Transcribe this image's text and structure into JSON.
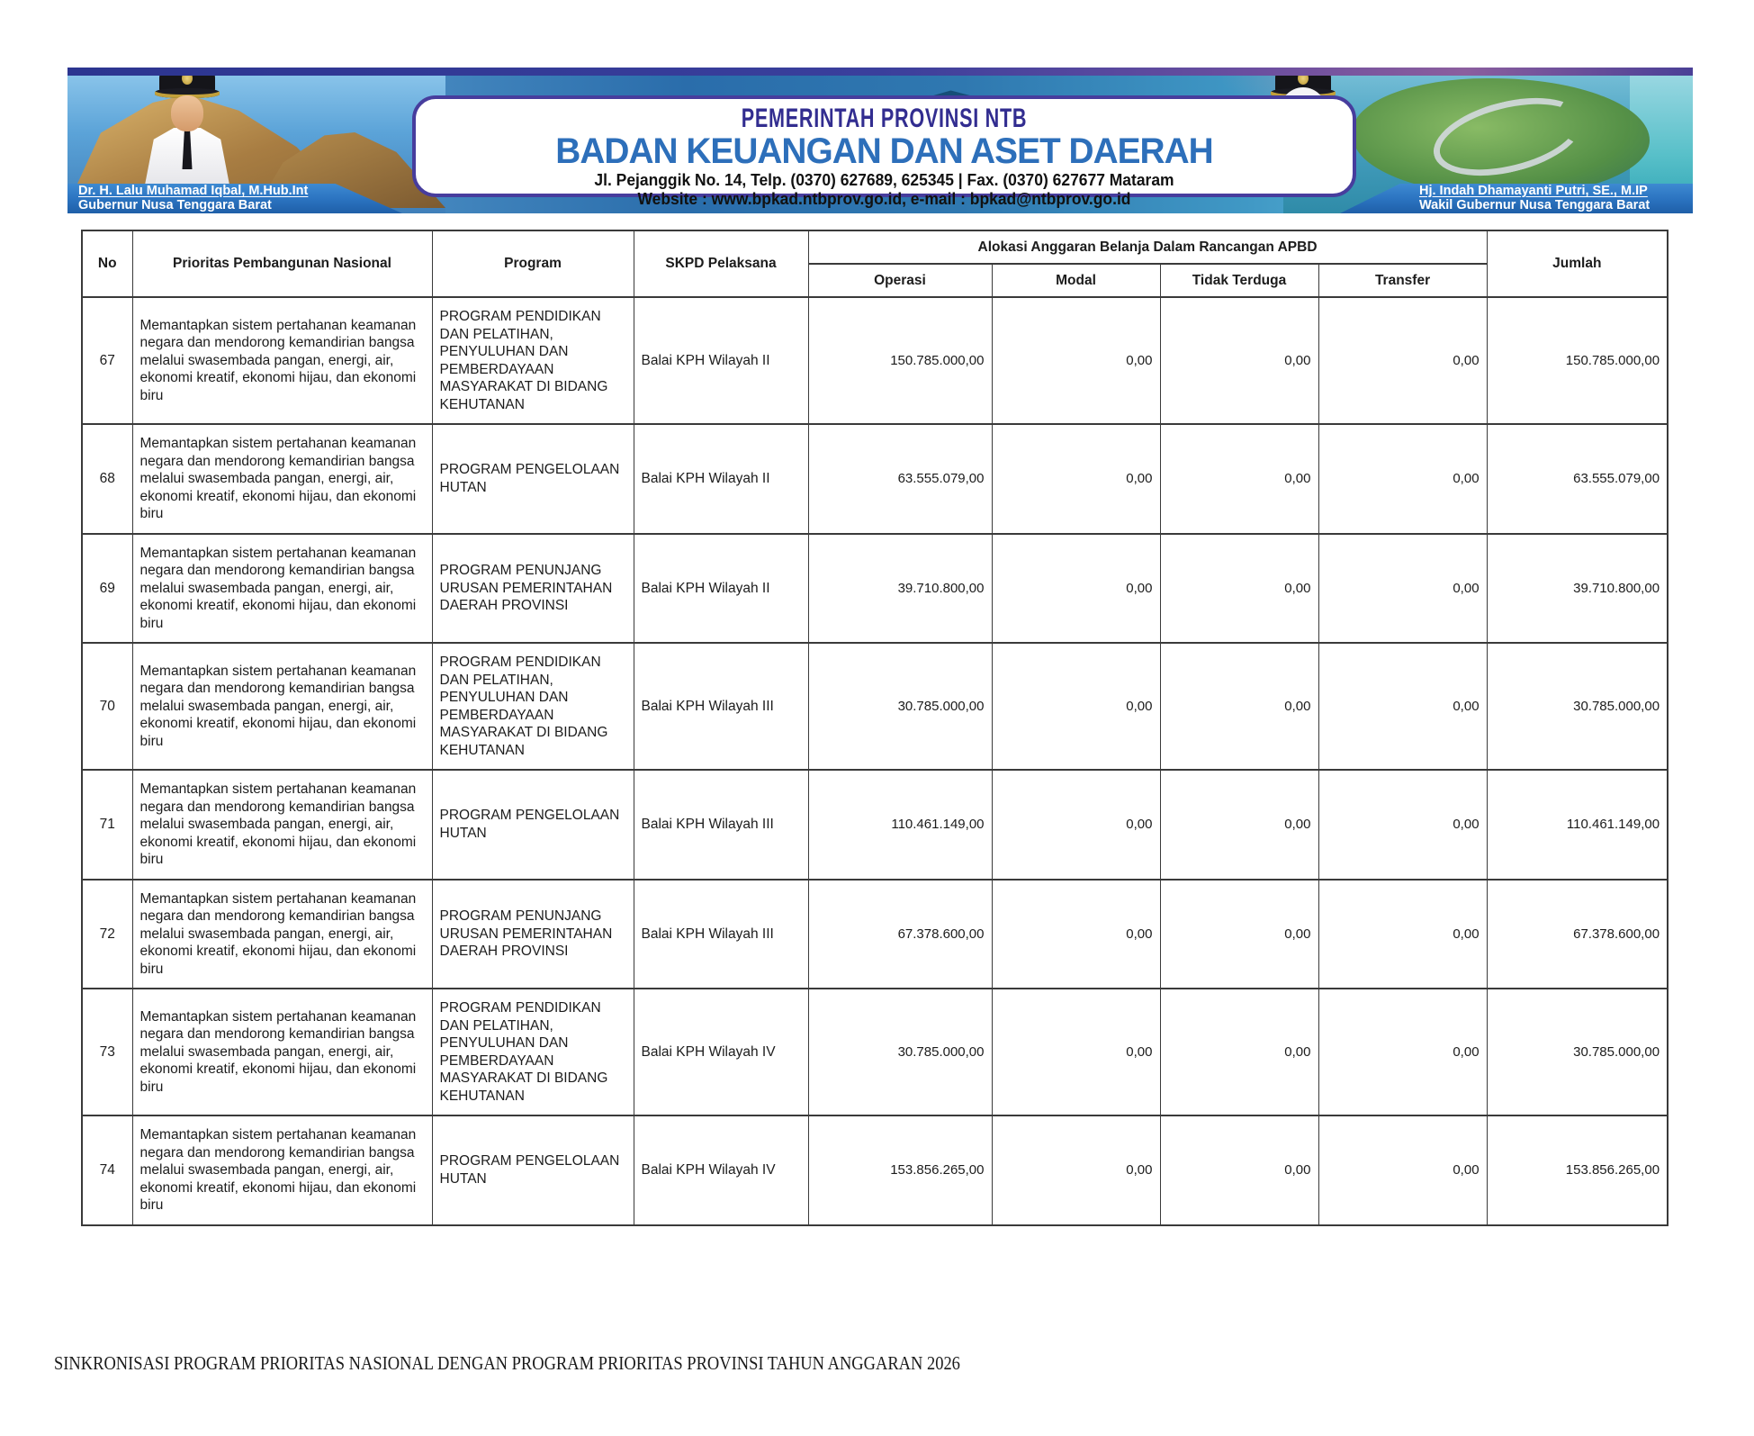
{
  "banner": {
    "agency_parent": "PEMERINTAH PROVINSI NTB",
    "agency_name": "BADAN KEUANGAN DAN ASET DAERAH",
    "address": "Jl. Pejanggik No. 14, Telp. (0370) 627689, 625345 | Fax. (0370) 627677 Mataram",
    "contact": "Website : www.bpkad.ntbprov.go.id, e-mail : bpkad@ntbprov.go.id",
    "left_official": {
      "name": "Dr. H. Lalu Muhamad Iqbal, M.Hub.Int",
      "title": "Gubernur Nusa Tenggara Barat"
    },
    "right_official": {
      "name": "Hj. Indah Dhamayanti Putri, SE., M.IP",
      "title": "Wakil Gubernur Nusa Tenggara Barat"
    }
  },
  "colors": {
    "title-indigo": "#322d90",
    "agency-blue": "#2d6fba",
    "box-border": "#473d9d",
    "ribbon-blue": "#2a72bf",
    "table-border": "#3a3a3a",
    "footer-text": "#1a1a1a"
  },
  "table": {
    "columns": {
      "no": "No",
      "priority": "Prioritas Pembangunan Nasional",
      "program": "Program",
      "skpd": "SKPD Pelaksana",
      "group": "Alokasi Anggaran Belanja Dalam Rancangan APBD",
      "operasi": "Operasi",
      "modal": "Modal",
      "tidak_terduga": "Tidak Terduga",
      "transfer": "Transfer",
      "jumlah": "Jumlah"
    },
    "rows": [
      {
        "no": "67",
        "priority": "Memantapkan sistem pertahanan keamanan negara dan mendorong kemandirian bangsa melalui swasembada pangan, energi, air, ekonomi kreatif, ekonomi hijau, dan ekonomi biru",
        "program": "PROGRAM PENDIDIKAN DAN PELATIHAN, PENYULUHAN DAN PEMBERDAYAAN MASYARAKAT DI BIDANG KEHUTANAN",
        "skpd": "Balai KPH Wilayah II",
        "operasi": "150.785.000,00",
        "modal": "0,00",
        "tidak_terduga": "0,00",
        "transfer": "0,00",
        "jumlah": "150.785.000,00"
      },
      {
        "no": "68",
        "priority": "Memantapkan sistem pertahanan keamanan negara dan mendorong kemandirian bangsa melalui swasembada pangan, energi, air, ekonomi kreatif, ekonomi hijau, dan ekonomi biru",
        "program": "PROGRAM PENGELOLAAN HUTAN",
        "skpd": "Balai KPH Wilayah II",
        "operasi": "63.555.079,00",
        "modal": "0,00",
        "tidak_terduga": "0,00",
        "transfer": "0,00",
        "jumlah": "63.555.079,00"
      },
      {
        "no": "69",
        "priority": "Memantapkan sistem pertahanan keamanan negara dan mendorong kemandirian bangsa melalui swasembada pangan, energi, air, ekonomi kreatif, ekonomi hijau, dan ekonomi biru",
        "program": "PROGRAM PENUNJANG URUSAN PEMERINTAHAN DAERAH PROVINSI",
        "skpd": "Balai KPH Wilayah II",
        "operasi": "39.710.800,00",
        "modal": "0,00",
        "tidak_terduga": "0,00",
        "transfer": "0,00",
        "jumlah": "39.710.800,00"
      },
      {
        "no": "70",
        "priority": "Memantapkan sistem pertahanan keamanan negara dan mendorong kemandirian bangsa melalui swasembada pangan, energi, air, ekonomi kreatif, ekonomi hijau, dan ekonomi biru",
        "program": "PROGRAM PENDIDIKAN DAN PELATIHAN, PENYULUHAN DAN PEMBERDAYAAN MASYARAKAT DI BIDANG KEHUTANAN",
        "skpd": "Balai KPH Wilayah III",
        "operasi": "30.785.000,00",
        "modal": "0,00",
        "tidak_terduga": "0,00",
        "transfer": "0,00",
        "jumlah": "30.785.000,00"
      },
      {
        "no": "71",
        "priority": "Memantapkan sistem pertahanan keamanan negara dan mendorong kemandirian bangsa melalui swasembada pangan, energi, air, ekonomi kreatif, ekonomi hijau, dan ekonomi biru",
        "program": "PROGRAM PENGELOLAAN HUTAN",
        "skpd": "Balai KPH Wilayah III",
        "operasi": "110.461.149,00",
        "modal": "0,00",
        "tidak_terduga": "0,00",
        "transfer": "0,00",
        "jumlah": "110.461.149,00"
      },
      {
        "no": "72",
        "priority": "Memantapkan sistem pertahanan keamanan negara dan mendorong kemandirian bangsa melalui swasembada pangan, energi, air, ekonomi kreatif, ekonomi hijau, dan ekonomi biru",
        "program": "PROGRAM PENUNJANG URUSAN PEMERINTAHAN DAERAH PROVINSI",
        "skpd": "Balai KPH Wilayah III",
        "operasi": "67.378.600,00",
        "modal": "0,00",
        "tidak_terduga": "0,00",
        "transfer": "0,00",
        "jumlah": "67.378.600,00"
      },
      {
        "no": "73",
        "priority": "Memantapkan sistem pertahanan keamanan negara dan mendorong kemandirian bangsa melalui swasembada pangan, energi, air, ekonomi kreatif, ekonomi hijau, dan ekonomi biru",
        "program": "PROGRAM PENDIDIKAN DAN PELATIHAN, PENYULUHAN DAN PEMBERDAYAAN MASYARAKAT DI BIDANG KEHUTANAN",
        "skpd": "Balai KPH Wilayah IV",
        "operasi": "30.785.000,00",
        "modal": "0,00",
        "tidak_terduga": "0,00",
        "transfer": "0,00",
        "jumlah": "30.785.000,00"
      },
      {
        "no": "74",
        "priority": "Memantapkan sistem pertahanan keamanan negara dan mendorong kemandirian bangsa melalui swasembada pangan, energi, air, ekonomi kreatif, ekonomi hijau, dan ekonomi biru",
        "program": "PROGRAM PENGELOLAAN HUTAN",
        "skpd": "Balai KPH Wilayah IV",
        "operasi": "153.856.265,00",
        "modal": "0,00",
        "tidak_terduga": "0,00",
        "transfer": "0,00",
        "jumlah": "153.856.265,00"
      }
    ]
  },
  "footer": {
    "caption": "SINKRONISASI PROGRAM PRIORITAS NASIONAL DENGAN PROGRAM PRIORITAS PROVINSI TAHUN ANGGARAN 2026"
  }
}
